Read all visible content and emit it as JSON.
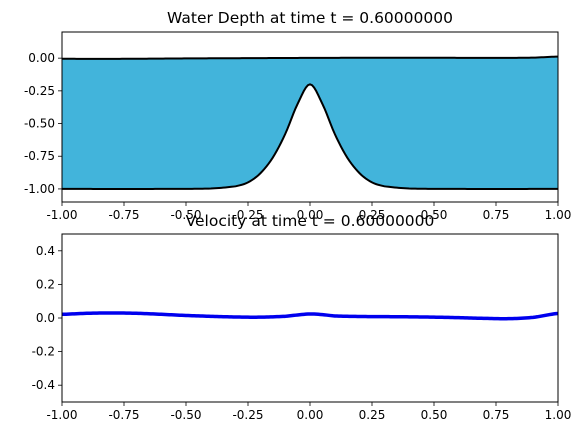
{
  "chart_data": [
    {
      "type": "area",
      "title": "Water Depth at time t =     0.60000000",
      "xlim": [
        -1.0,
        1.0
      ],
      "ylim": [
        -1.1,
        0.2
      ],
      "grid": false,
      "x_ticks": [
        "-1.00",
        "-0.75",
        "-0.50",
        "-0.25",
        "0.00",
        "0.25",
        "0.50",
        "0.75",
        "1.00"
      ],
      "y_ticks": [
        "0.00",
        "-0.25",
        "-0.50",
        "-0.75",
        "-1.00"
      ],
      "fill_color": "#42b4db",
      "line_color": "#000000",
      "surface": {
        "x": [
          -1.0,
          -0.75,
          -0.5,
          -0.25,
          0.0,
          0.25,
          0.5,
          0.75,
          0.9,
          1.0
        ],
        "y": [
          -0.005,
          -0.005,
          -0.002,
          0.0,
          0.002,
          0.003,
          0.003,
          0.002,
          0.004,
          0.012
        ]
      },
      "bottom": {
        "x": [
          -1.0,
          -0.6,
          -0.4,
          -0.3,
          -0.25,
          -0.2,
          -0.15,
          -0.1,
          -0.05,
          0.0,
          0.05,
          0.1,
          0.15,
          0.2,
          0.25,
          0.3,
          0.4,
          0.6,
          1.0
        ],
        "y": [
          -1.0,
          -1.0,
          -0.997,
          -0.98,
          -0.95,
          -0.88,
          -0.76,
          -0.58,
          -0.35,
          -0.2,
          -0.35,
          -0.58,
          -0.76,
          -0.88,
          -0.95,
          -0.98,
          -0.997,
          -1.0,
          -1.0
        ]
      }
    },
    {
      "type": "line",
      "title": "Velocity at time t =     0.60000000",
      "xlim": [
        -1.0,
        1.0
      ],
      "ylim": [
        -0.5,
        0.5
      ],
      "grid": false,
      "x_ticks": [
        "-1.00",
        "-0.75",
        "-0.50",
        "-0.25",
        "0.00",
        "0.25",
        "0.50",
        "0.75",
        "1.00"
      ],
      "y_ticks": [
        "0.4",
        "0.2",
        "0.0",
        "-0.2",
        "-0.4"
      ],
      "line_color": "#0000ee",
      "x": [
        -1.0,
        -0.9,
        -0.8,
        -0.7,
        -0.6,
        -0.5,
        -0.4,
        -0.3,
        -0.2,
        -0.1,
        -0.05,
        0.0,
        0.05,
        0.1,
        0.2,
        0.3,
        0.4,
        0.5,
        0.6,
        0.7,
        0.8,
        0.9,
        1.0
      ],
      "y": [
        0.022,
        0.028,
        0.03,
        0.028,
        0.022,
        0.015,
        0.01,
        0.006,
        0.005,
        0.01,
        0.018,
        0.024,
        0.02,
        0.012,
        0.009,
        0.008,
        0.007,
        0.005,
        0.002,
        -0.002,
        -0.004,
        0.004,
        0.027
      ]
    }
  ]
}
